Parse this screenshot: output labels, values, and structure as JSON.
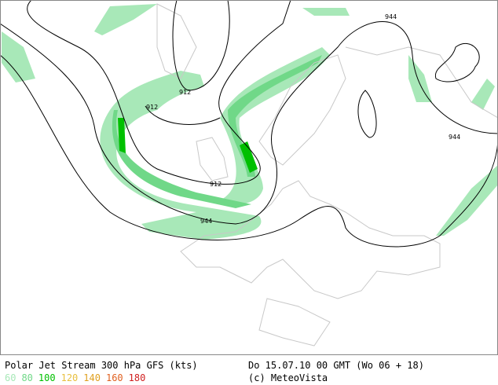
{
  "map": {
    "contour_labels": [
      "944",
      "912",
      "912",
      "912",
      "944",
      "944"
    ]
  },
  "footer": {
    "title": "Polar Jet Stream 300 hPa GFS (kts)",
    "legend": [
      {
        "label": "60",
        "color": "#a8e8b8"
      },
      {
        "label": "80",
        "color": "#70d888"
      },
      {
        "label": "100",
        "color": "#00c000"
      },
      {
        "label": "120",
        "color": "#e8c040"
      },
      {
        "label": "140",
        "color": "#e0a020"
      },
      {
        "label": "160",
        "color": "#e06020"
      },
      {
        "label": "180",
        "color": "#d02020"
      }
    ],
    "timestamp": "Do 15.07.10 00 GMT (Wo 06 + 18)",
    "credit": "(c) MeteoVista"
  }
}
